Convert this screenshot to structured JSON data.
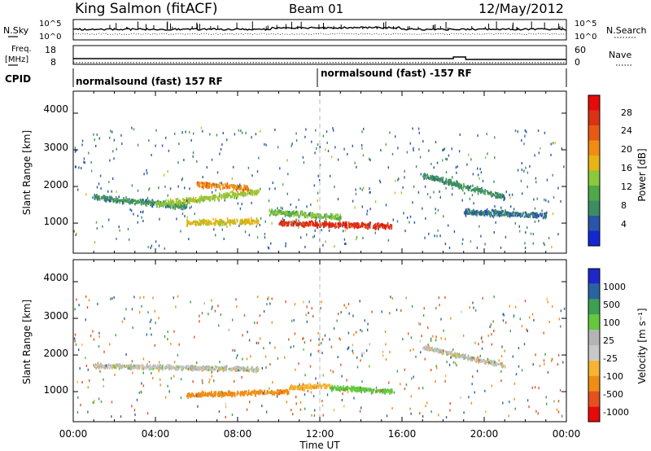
{
  "header": {
    "station": "King Salmon (fitACF)",
    "beam": "Beam 01",
    "date": "12/May/2012"
  },
  "noise_panel": {
    "left_label": "N.Sky",
    "right_label": "N.Search",
    "left_ticks": [
      "10^5",
      "10^0"
    ],
    "right_ticks": [
      "10^5",
      "10^0"
    ]
  },
  "freq_panel": {
    "left_label_1": "Freq.",
    "left_label_2": "[MHz]",
    "right_label": "Nave",
    "left_ticks": [
      "18",
      "8"
    ],
    "right_ticks": [
      "60",
      "0"
    ]
  },
  "cpid": {
    "label": "CPID",
    "segments": [
      {
        "text": "normalsound (fast) 157 RF",
        "start_hour": 0
      },
      {
        "text": "normalsound (fast) -157 RF",
        "start_hour": 12
      }
    ]
  },
  "xaxis": {
    "title": "Time UT",
    "ticks": [
      "00:00",
      "04:00",
      "08:00",
      "12:00",
      "16:00",
      "20:00",
      "00:00"
    ]
  },
  "power_panel": {
    "ylabel": "Slant Range [km]",
    "yticks": [
      "4000",
      "3000",
      "2000",
      "1000"
    ],
    "colorbar_label": "Power [dB]",
    "colorbar_ticks": [
      "28",
      "24",
      "20",
      "16",
      "12",
      "8",
      "4"
    ]
  },
  "velocity_panel": {
    "ylabel": "Slant Range [km]",
    "yticks": [
      "4000",
      "3000",
      "2000",
      "1000"
    ],
    "colorbar_label": "Velocity [m s⁻¹]",
    "colorbar_ticks": [
      "1000",
      "500",
      "100",
      "25",
      "-25",
      "-100",
      "-500",
      "-1000"
    ]
  },
  "colors": {
    "power_scale": [
      "#1428d2",
      "#2a56a8",
      "#3c8c64",
      "#52a848",
      "#8cc83c",
      "#e6b414",
      "#f08c14",
      "#e65a14",
      "#dc3214",
      "#e60a0a"
    ],
    "velocity_scale": [
      "#e60a0a",
      "#e6501e",
      "#f08c14",
      "#f5b432",
      "#c8c8c8",
      "#b4b4b4",
      "#64c83c",
      "#3ca050",
      "#2a64a0",
      "#1e28c8"
    ]
  },
  "chart_data": [
    {
      "type": "heatmap",
      "title": "Power",
      "x_range_hours": [
        0,
        24
      ],
      "y_range_km": [
        180,
        4600
      ],
      "value_range_db": [
        0,
        30
      ],
      "features": [
        {
          "start_hour": 1.0,
          "end_hour": 5.5,
          "range_start_km": 1700,
          "range_end_km": 1450,
          "value_db": 8
        },
        {
          "start_hour": 4.0,
          "end_hour": 9.0,
          "range_start_km": 1500,
          "range_end_km": 1850,
          "value_db": 14
        },
        {
          "start_hour": 6.0,
          "end_hour": 8.5,
          "range_start_km": 2050,
          "range_end_km": 1950,
          "value_db": 20
        },
        {
          "start_hour": 5.5,
          "end_hour": 9.0,
          "range_start_km": 1000,
          "range_end_km": 1050,
          "value_db": 16
        },
        {
          "start_hour": 9.5,
          "end_hour": 13.0,
          "range_start_km": 1300,
          "range_end_km": 1150,
          "value_db": 12
        },
        {
          "start_hour": 10.0,
          "end_hour": 15.5,
          "range_start_km": 1000,
          "range_end_km": 900,
          "value_db": 26
        },
        {
          "start_hour": 17.0,
          "end_hour": 21.0,
          "range_start_km": 2300,
          "range_end_km": 1700,
          "value_db": 8
        },
        {
          "start_hour": 19.0,
          "end_hour": 23.0,
          "range_start_km": 1300,
          "range_end_km": 1200,
          "value_db": 6
        }
      ]
    },
    {
      "type": "heatmap",
      "title": "Velocity",
      "x_range_hours": [
        0,
        24
      ],
      "y_range_km": [
        180,
        4600
      ],
      "value_range_ms": [
        -1000,
        1000
      ],
      "features": [
        {
          "start_hour": 1.0,
          "end_hour": 9.0,
          "range_start_km": 1700,
          "range_end_km": 1600,
          "value_ms": 0
        },
        {
          "start_hour": 5.5,
          "end_hour": 10.5,
          "range_start_km": 900,
          "range_end_km": 1000,
          "value_ms": -150
        },
        {
          "start_hour": 10.5,
          "end_hour": 12.5,
          "range_start_km": 1100,
          "range_end_km": 1150,
          "value_ms": -80
        },
        {
          "start_hour": 12.5,
          "end_hour": 15.5,
          "range_start_km": 1100,
          "range_end_km": 1000,
          "value_ms": 80
        },
        {
          "start_hour": 17.0,
          "end_hour": 21.0,
          "range_start_km": 2200,
          "range_end_km": 1700,
          "value_ms": 0
        }
      ]
    }
  ]
}
